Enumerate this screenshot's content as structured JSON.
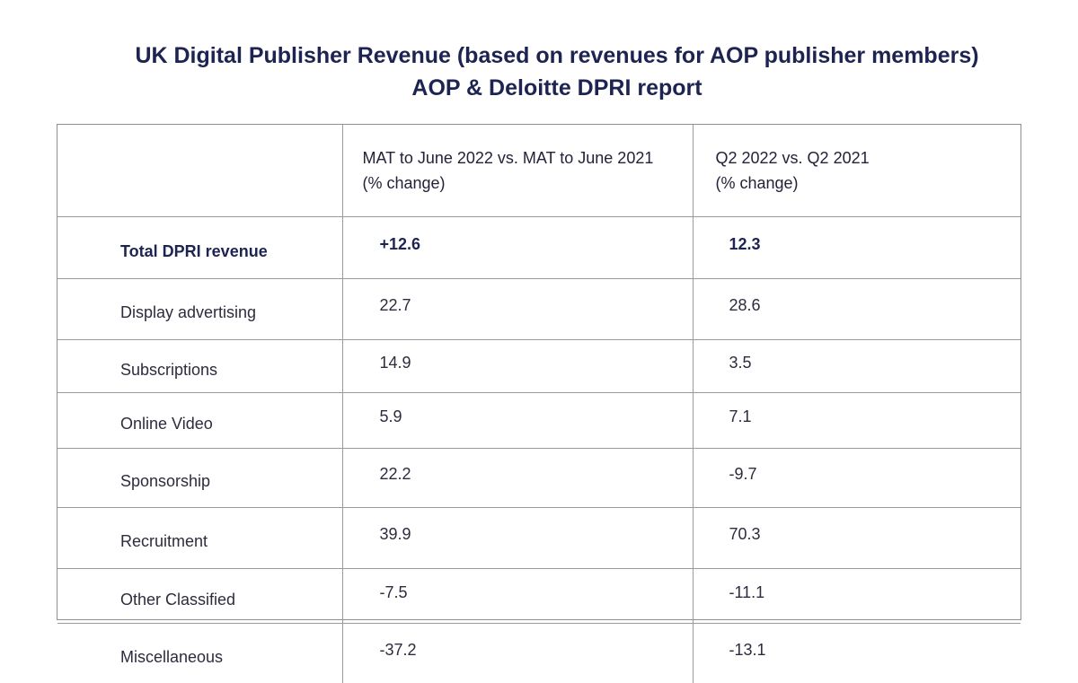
{
  "title": {
    "line1": "UK Digital Publisher Revenue (based on revenues for AOP publisher members)",
    "line2": "AOP & Deloitte DPRI report"
  },
  "table": {
    "headers": [
      "",
      "MAT to June 2022 vs. MAT to June 2021",
      "Q2 2022 vs. Q2 2021"
    ],
    "header_sub": [
      "",
      "(% change)",
      "(% change)"
    ],
    "rows": [
      {
        "label": "Total DPRI revenue",
        "mat": "+12.6",
        "q2": "12.3"
      },
      {
        "label": "Display advertising",
        "mat": "22.7",
        "q2": "28.6"
      },
      {
        "label": "Subscriptions",
        "mat": "14.9",
        "q2": "3.5"
      },
      {
        "label": "Online Video",
        "mat": "5.9",
        "q2": "7.1"
      },
      {
        "label": "Sponsorship",
        "mat": "22.2",
        "q2": "-9.7"
      },
      {
        "label": "Recruitment",
        "mat": "39.9",
        "q2": "70.3"
      },
      {
        "label": "Other Classified",
        "mat": "-7.5",
        "q2": "-11.1"
      },
      {
        "label": "Miscellaneous",
        "mat": "-37.2",
        "q2": "-13.1"
      }
    ]
  },
  "chart_data": {
    "type": "table",
    "title": "UK Digital Publisher Revenue (based on revenues for AOP publisher members)",
    "subtitle": "AOP & Deloitte DPRI report",
    "columns": [
      "MAT to June 2022 vs. MAT to June 2021 (% change)",
      "Q2 2022 vs. Q2 2021 (% change)"
    ],
    "categories": [
      "Total DPRI revenue",
      "Display advertising",
      "Subscriptions",
      "Online Video",
      "Sponsorship",
      "Recruitment",
      "Other Classified",
      "Miscellaneous"
    ],
    "series": [
      {
        "name": "MAT to June 2022 vs. MAT to June 2021 (% change)",
        "values": [
          12.6,
          22.7,
          14.9,
          5.9,
          22.2,
          39.9,
          -7.5,
          -37.2
        ]
      },
      {
        "name": "Q2 2022 vs. Q2 2021 (% change)",
        "values": [
          12.3,
          28.6,
          3.5,
          7.1,
          -9.7,
          70.3,
          -11.1,
          -13.1
        ]
      }
    ]
  }
}
